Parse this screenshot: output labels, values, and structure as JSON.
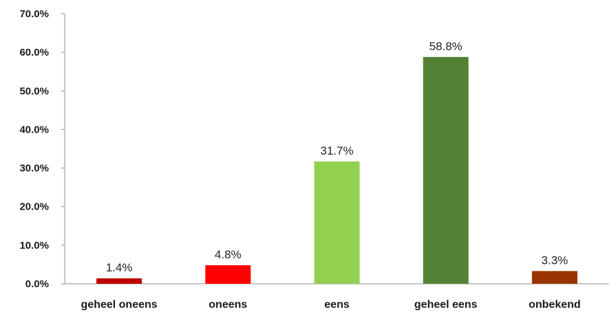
{
  "chart_data": {
    "type": "bar",
    "categories": [
      "geheel oneens",
      "oneens",
      "eens",
      "geheel eens",
      "onbekend"
    ],
    "values": [
      1.4,
      4.8,
      31.7,
      58.8,
      3.3
    ],
    "data_labels": [
      "1.4%",
      "4.8%",
      "31.7%",
      "58.8%",
      "3.3%"
    ],
    "colors": [
      "#C00000",
      "#FF0000",
      "#92D050",
      "#548235",
      "#993300"
    ],
    "ylim": [
      0,
      70
    ],
    "yticks": [
      0,
      10,
      20,
      30,
      40,
      50,
      60,
      70
    ],
    "ytick_labels": [
      "0.0%",
      "10.0%",
      "20.0%",
      "30.0%",
      "40.0%",
      "50.0%",
      "60.0%",
      "70.0%"
    ],
    "grid": false,
    "legend": "none"
  }
}
